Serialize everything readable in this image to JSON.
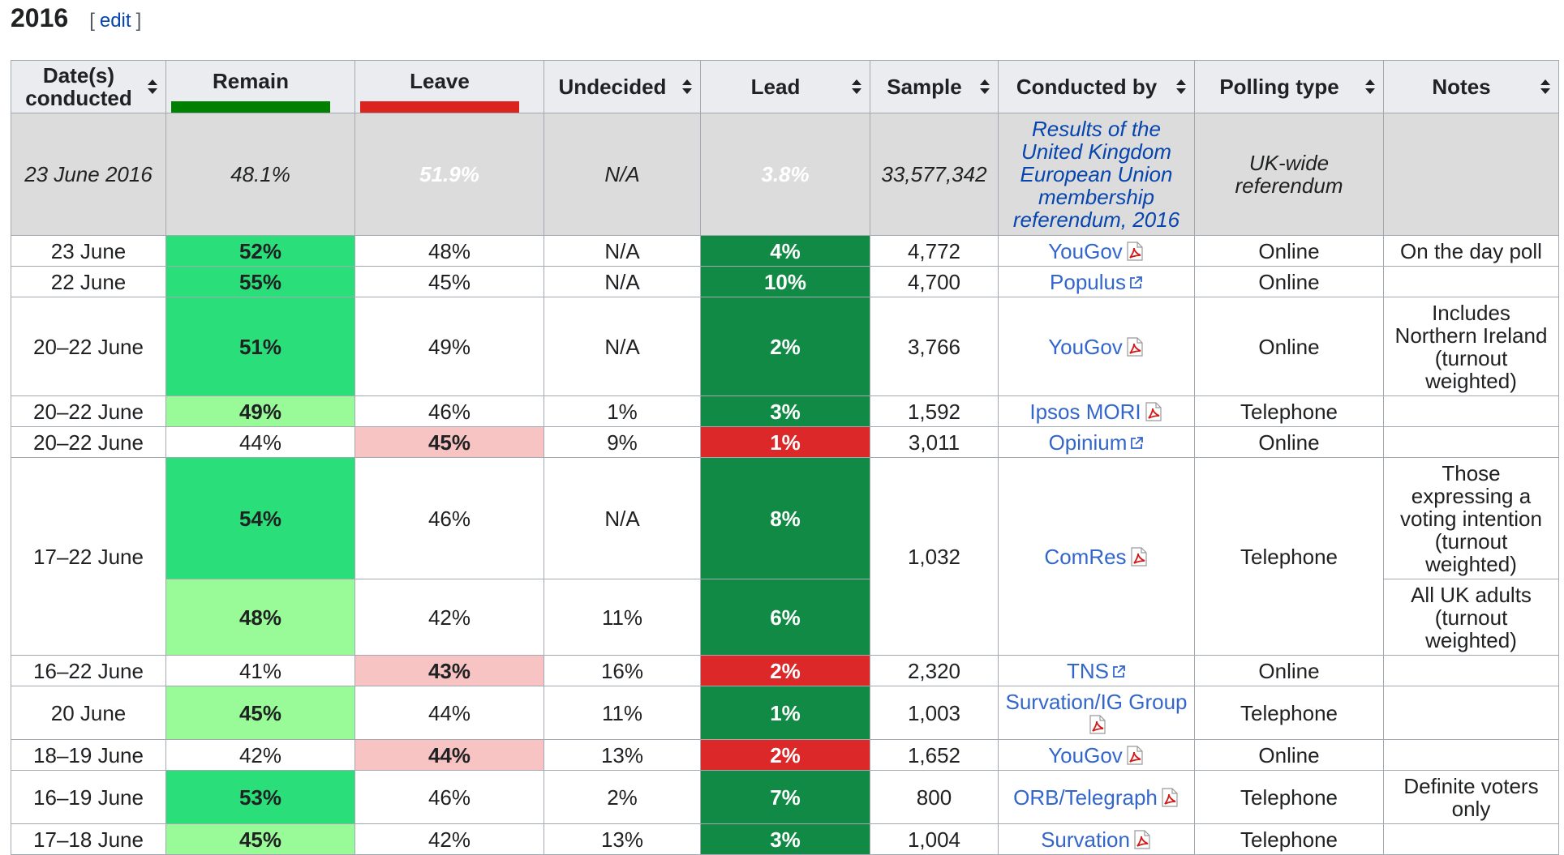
{
  "section": {
    "title": "2016",
    "edit_open": "[",
    "edit_label": "edit",
    "edit_close": "]"
  },
  "colors": {
    "remain": "#008000",
    "leave": "#dc241f",
    "remain_light": "#98fb98",
    "remain_mid": "#2ade7a",
    "leave_light": "#f7c3c3",
    "lead_remain": "#108a44",
    "lead_leave": "#dc2828"
  },
  "table": {
    "headers": {
      "dates_line1": "Date(s)",
      "dates_line2": "conducted",
      "remain": "Remain",
      "leave": "Leave",
      "undecided": "Undecided",
      "lead": "Lead",
      "sample": "Sample",
      "conducted_by": "Conducted by",
      "polling_type": "Polling type",
      "notes": "Notes"
    },
    "result": {
      "date": "23 June 2016",
      "remain": "48.1%",
      "leave": "51.9%",
      "undecided": "N/A",
      "lead": "3.8%",
      "sample": "33,577,342",
      "conducted_by": "Results of the United Kingdom European Union membership referendum, 2016",
      "polling_type": "UK-wide referendum",
      "notes": ""
    },
    "rows": [
      {
        "date": "23 June",
        "remain": "52%",
        "leave": "48%",
        "undecided": "N/A",
        "lead": "4%",
        "sample": "4,772",
        "org": "YouGov",
        "org_icon": "pdf-icon",
        "type": "Online",
        "notes": "On the day poll"
      },
      {
        "date": "22 June",
        "remain": "55%",
        "leave": "45%",
        "undecided": "N/A",
        "lead": "10%",
        "sample": "4,700",
        "org": "Populus",
        "org_icon": "external-link-icon",
        "type": "Online",
        "notes": ""
      },
      {
        "date": "20–22 June",
        "remain": "51%",
        "leave": "49%",
        "undecided": "N/A",
        "lead": "2%",
        "sample": "3,766",
        "org": "YouGov",
        "org_icon": "pdf-icon",
        "type": "Online",
        "notes": "Includes Northern Ireland (turnout weighted)"
      },
      {
        "date": "20–22 June",
        "remain": "49%",
        "leave": "46%",
        "undecided": "1%",
        "lead": "3%",
        "sample": "1,592",
        "org": "Ipsos MORI",
        "org_icon": "pdf-icon",
        "type": "Telephone",
        "notes": ""
      },
      {
        "date": "20–22 June",
        "remain": "44%",
        "leave": "45%",
        "undecided": "9%",
        "lead": "1%",
        "sample": "3,011",
        "org": "Opinium",
        "org_icon": "external-link-icon",
        "type": "Online",
        "notes": ""
      },
      {
        "date": "17–22 June",
        "remain": "54%",
        "leave": "46%",
        "undecided": "N/A",
        "lead": "8%",
        "sample": "1,032",
        "org": "ComRes",
        "org_icon": "pdf-icon",
        "type": "Telephone",
        "notes": "Those expressing a voting intention (turnout weighted)"
      },
      {
        "remain": "48%",
        "leave": "42%",
        "undecided": "11%",
        "lead": "6%",
        "notes": "All UK adults (turnout weighted)"
      },
      {
        "date": "16–22 June",
        "remain": "41%",
        "leave": "43%",
        "undecided": "16%",
        "lead": "2%",
        "sample": "2,320",
        "org": "TNS",
        "org_icon": "external-link-icon",
        "type": "Online",
        "notes": ""
      },
      {
        "date": "20 June",
        "remain": "45%",
        "leave": "44%",
        "undecided": "11%",
        "lead": "1%",
        "sample": "1,003",
        "org": "Survation/IG Group",
        "org_icon": "pdf-icon",
        "type": "Telephone",
        "notes": ""
      },
      {
        "date": "18–19 June",
        "remain": "42%",
        "leave": "44%",
        "undecided": "13%",
        "lead": "2%",
        "sample": "1,652",
        "org": "YouGov",
        "org_icon": "pdf-icon",
        "type": "Online",
        "notes": ""
      },
      {
        "date": "16–19 June",
        "remain": "53%",
        "leave": "46%",
        "undecided": "2%",
        "lead": "7%",
        "sample": "800",
        "org": "ORB/Telegraph",
        "org_icon": "pdf-icon",
        "type": "Telephone",
        "notes": "Definite voters only"
      },
      {
        "date": "17–18 June",
        "remain": "45%",
        "leave": "42%",
        "undecided": "13%",
        "lead": "3%",
        "sample": "1,004",
        "org": "Survation",
        "org_icon": "pdf-icon",
        "type": "Telephone",
        "notes": ""
      }
    ]
  }
}
